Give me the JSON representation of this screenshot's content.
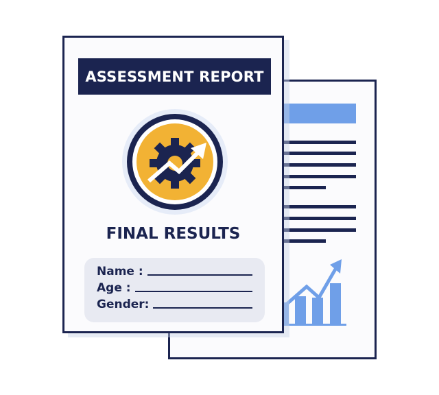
{
  "front_page": {
    "banner_title": "ASSESSMENT REPORT",
    "emblem_icon": "gear-with-rising-arrow-icon",
    "section_title": "FINAL RESULTS",
    "form_fields": [
      {
        "label": "Name :"
      },
      {
        "label": "Age :"
      },
      {
        "label": "Gender:"
      }
    ]
  },
  "back_page": {
    "chart_icon": "bar-chart-rising-arrow-icon"
  },
  "colors": {
    "navy": "#1b2450",
    "gold": "#f2b234",
    "blue": "#6f9fe8",
    "form_bg": "#e8eaf2"
  }
}
